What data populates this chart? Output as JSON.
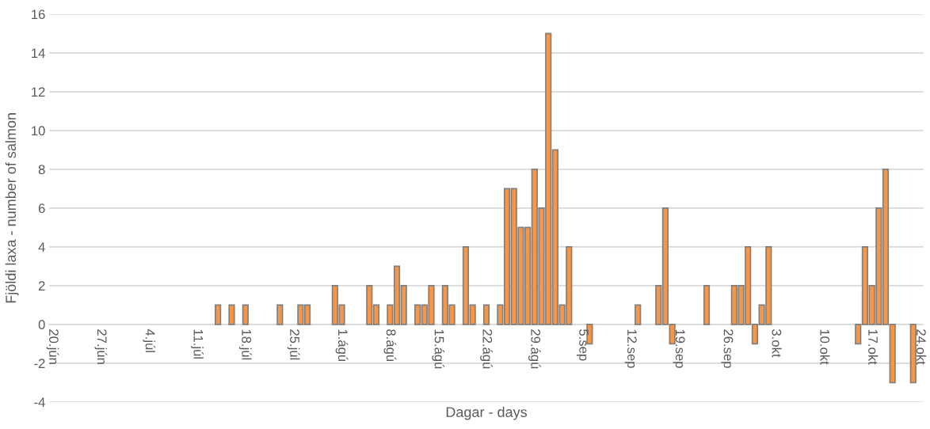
{
  "chart_data": {
    "type": "bar",
    "xlabel": "Dagar - days",
    "ylabel": "Fjöldi laxa - number of salmon",
    "categories": [
      "20.jún",
      null,
      null,
      null,
      null,
      null,
      null,
      "27.jún",
      null,
      null,
      null,
      null,
      null,
      null,
      "4.júl",
      null,
      null,
      null,
      null,
      null,
      null,
      "11.júl",
      null,
      null,
      null,
      null,
      null,
      null,
      "18.júl",
      null,
      null,
      null,
      null,
      null,
      null,
      "25.júl",
      null,
      null,
      null,
      null,
      null,
      null,
      "1.ágú",
      null,
      null,
      null,
      null,
      null,
      null,
      "8.ágú",
      null,
      null,
      null,
      null,
      null,
      null,
      "15.ágú",
      null,
      null,
      null,
      null,
      null,
      null,
      "22.ágú",
      null,
      null,
      null,
      null,
      null,
      null,
      "29.ágú",
      null,
      null,
      null,
      null,
      null,
      null,
      "5.sep",
      null,
      null,
      null,
      null,
      null,
      null,
      "12.sep",
      null,
      null,
      null,
      null,
      null,
      null,
      "19.sep",
      null,
      null,
      null,
      null,
      null,
      null,
      "26.sep",
      null,
      null,
      null,
      null,
      null,
      null,
      "3.okt",
      null,
      null,
      null,
      null,
      null,
      null,
      "10.okt",
      null,
      null,
      null,
      null,
      null,
      null,
      "17.okt",
      null,
      null,
      null,
      null,
      null,
      null,
      "24.okt"
    ],
    "values": [
      null,
      null,
      null,
      null,
      null,
      null,
      null,
      null,
      null,
      null,
      null,
      null,
      null,
      null,
      null,
      null,
      null,
      null,
      null,
      null,
      null,
      null,
      null,
      null,
      1,
      null,
      1,
      null,
      1,
      null,
      null,
      null,
      null,
      1,
      null,
      null,
      1,
      1,
      null,
      null,
      null,
      2,
      1,
      null,
      null,
      null,
      2,
      1,
      null,
      1,
      3,
      2,
      null,
      1,
      1,
      2,
      null,
      2,
      1,
      null,
      4,
      1,
      null,
      1,
      null,
      1,
      7,
      7,
      5,
      5,
      8,
      6,
      15,
      9,
      1,
      4,
      null,
      null,
      -1,
      null,
      null,
      null,
      null,
      null,
      null,
      1,
      null,
      null,
      2,
      6,
      -1,
      null,
      null,
      null,
      null,
      2,
      null,
      null,
      null,
      2,
      2,
      4,
      -1,
      1,
      4,
      null,
      null,
      null,
      null,
      null,
      null,
      null,
      null,
      null,
      null,
      null,
      null,
      -1,
      4,
      2,
      6,
      8,
      -3,
      null,
      null,
      -3,
      null
    ],
    "color": "#f79646",
    "ylim": [
      -4,
      16
    ],
    "yticks": [
      -4,
      -2,
      0,
      2,
      4,
      6,
      8,
      10,
      12,
      14,
      16
    ],
    "grid": "y"
  }
}
